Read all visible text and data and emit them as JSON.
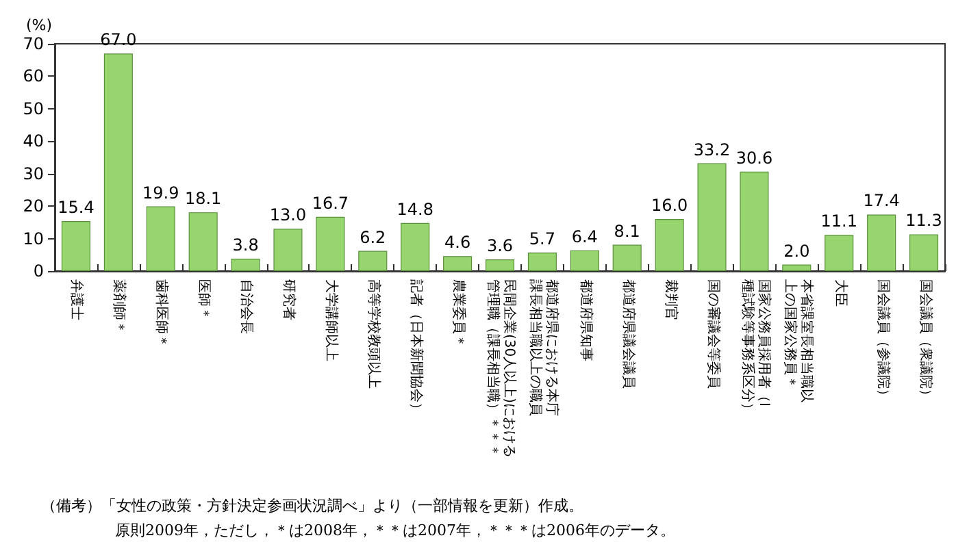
{
  "chart_data": {
    "type": "bar",
    "ylabel": "(%)",
    "categories": [
      "弁護士",
      "薬剤師＊",
      "歯科医師＊",
      "医師＊",
      "自治会長",
      "研究者",
      "大学講師以上",
      "高等学校教頭以上",
      "記者（日本新聞協会）",
      "農業委員＊",
      "民間企業(30人以上)における管理職（課長相当職）＊＊＊",
      "都道府県における本庁課長相当職以上の職員",
      "都道府県知事",
      "都道府県議会議員",
      "裁判官",
      "国の審議会等委員",
      "国家公務員採用者（Ⅰ種試験等事務系区分）",
      "本省課室長相当職以上の国家公務員＊",
      "大臣",
      "国会議員（参議院）",
      "国会議員（衆議院）"
    ],
    "values": [
      15.4,
      67.0,
      19.9,
      18.1,
      3.8,
      13.0,
      16.7,
      6.2,
      14.8,
      4.6,
      3.6,
      5.7,
      6.4,
      8.1,
      16.0,
      33.2,
      30.6,
      2.0,
      11.1,
      17.4,
      11.3
    ],
    "value_labels": [
      "15.4",
      "67.0",
      "19.9",
      "18.1",
      "3.8",
      "13.0",
      "16.7",
      "6.2",
      "14.8",
      "4.6",
      "3.6",
      "5.7",
      "6.4",
      "8.1",
      "16.0",
      "33.2",
      "30.6",
      "2.0",
      "11.1",
      "17.4",
      "11.3"
    ],
    "color": "#97d66e",
    "ylim": [
      0,
      70
    ],
    "yticks": [
      0,
      10,
      20,
      30,
      40,
      50,
      60,
      70
    ],
    "grid": false,
    "annotations": [
      "（備考）「女性の政策・方針決定参画状況調べ」より（一部情報を更新）作成。",
      "原則2009年，ただし，＊は2008年，＊＊は2007年，＊＊＊は2006年のデータ。"
    ]
  }
}
